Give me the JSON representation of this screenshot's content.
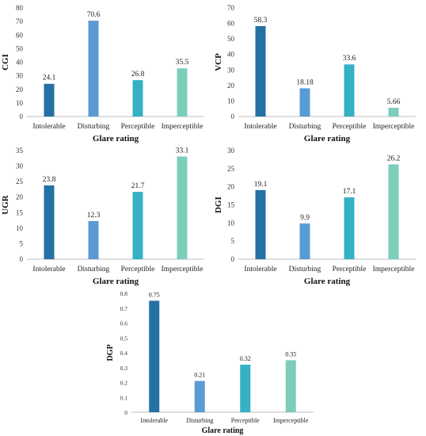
{
  "colors": [
    "#2471a3",
    "#5b9bd5",
    "#36b0c4",
    "#7ecdbb"
  ],
  "chart_data": [
    {
      "type": "bar",
      "ylabel": "CGI",
      "xlabel": "Glare rating",
      "categories": [
        "Intolerable",
        "Disturbing",
        "Perceptible",
        "Imperceptible"
      ],
      "values": [
        24.1,
        70.6,
        26.8,
        35.5
      ],
      "value_labels": [
        "24.1",
        "70.6",
        "26.8",
        "35.5"
      ],
      "ylim": [
        0,
        80
      ],
      "yticks": [
        0,
        10,
        20,
        30,
        40,
        50,
        60,
        70,
        80
      ],
      "grid": false
    },
    {
      "type": "bar",
      "ylabel": "VCP",
      "xlabel": "Glare rating",
      "categories": [
        "Intolerable",
        "Disturbing",
        "Perceptible",
        "Imperceptible"
      ],
      "values": [
        58.3,
        18.18,
        33.6,
        5.66
      ],
      "value_labels": [
        "58.3",
        "18.18",
        "33.6",
        "5.66"
      ],
      "ylim": [
        0,
        70
      ],
      "yticks": [
        0,
        10,
        20,
        30,
        40,
        50,
        60,
        70
      ],
      "grid": false
    },
    {
      "type": "bar",
      "ylabel": "UGR",
      "xlabel": "Glare rating",
      "categories": [
        "Intolerable",
        "Disturbing",
        "Perceptible",
        "Imperceptible"
      ],
      "values": [
        23.8,
        12.3,
        21.7,
        33.1
      ],
      "value_labels": [
        "23.8",
        "12.3",
        "21.7",
        "33.1"
      ],
      "ylim": [
        0,
        35
      ],
      "yticks": [
        0,
        5,
        10,
        15,
        20,
        25,
        30,
        35
      ],
      "grid": false
    },
    {
      "type": "bar",
      "ylabel": "DGI",
      "xlabel": "Glare rating",
      "categories": [
        "Intolerable",
        "Disturbing",
        "Perceptible",
        "Imperceptible"
      ],
      "values": [
        19.1,
        9.9,
        17.1,
        26.2
      ],
      "value_labels": [
        "19.1",
        "9.9",
        "17.1",
        "26.2"
      ],
      "ylim": [
        0,
        30
      ],
      "yticks": [
        0,
        5,
        10,
        15,
        20,
        25,
        30
      ],
      "grid": false
    },
    {
      "type": "bar",
      "ylabel": "DGP",
      "xlabel": "Glare rating",
      "categories": [
        "Intolerable",
        "Disturbing",
        "Perceptible",
        "Imperceptible"
      ],
      "values": [
        0.75,
        0.21,
        0.32,
        0.35
      ],
      "value_labels": [
        "0.75",
        "0.21",
        "0.32",
        "0.35"
      ],
      "ylim": [
        0,
        0.8
      ],
      "yticks": [
        0,
        0.1,
        0.2,
        0.3,
        0.4,
        0.5,
        0.6,
        0.7,
        0.8
      ],
      "ytick_labels": [
        "0",
        "0.1",
        "0.2",
        "0.3",
        "0.4",
        "0.5",
        "0.6",
        "0.7",
        "0.8"
      ],
      "grid": false
    }
  ]
}
